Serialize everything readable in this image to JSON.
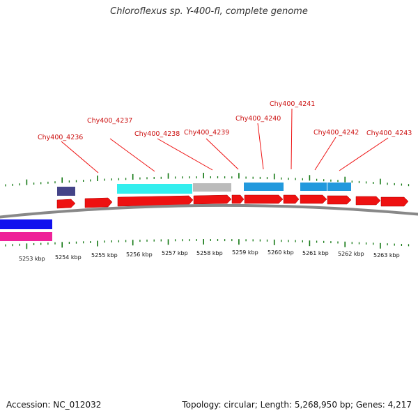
{
  "title": "Chloroflexus sp. Y-400-fl, complete genome",
  "footer": {
    "accession": "Accession: NC_012032",
    "summary": "Topology: circular; Length: 5,268,950 bp; Genes: 4,217"
  },
  "colors": {
    "cds": "#ee1111",
    "cds_dark": "#aa0000",
    "label": "#cc1111",
    "tick": "#117711",
    "track_cyan": "#33eeee",
    "track_gray": "#bbbbbb",
    "track_blue": "#2299dd",
    "track_navy": "#444488",
    "track_blue_strong": "#1111ee",
    "track_magenta": "#ee2299",
    "backbone": "#888888"
  },
  "gene_labels": [
    {
      "text": "Chy400_4236"
    },
    {
      "text": "Chy400_4237"
    },
    {
      "text": "Chy400_4238"
    },
    {
      "text": "Chy400_4239"
    },
    {
      "text": "Chy400_4240"
    },
    {
      "text": "Chy400_4241"
    },
    {
      "text": "Chy400_4242"
    },
    {
      "text": "Chy400_4243"
    }
  ],
  "kbp_labels": [
    {
      "text": "5253 kbp"
    },
    {
      "text": "5254 kbp"
    },
    {
      "text": "5255 kbp"
    },
    {
      "text": "5256 kbp"
    },
    {
      "text": "5257 kbp"
    },
    {
      "text": "5258 kbp"
    },
    {
      "text": "5259 kbp"
    },
    {
      "text": "5260 kbp"
    },
    {
      "text": "5261 kbp"
    },
    {
      "text": "5262 kbp"
    },
    {
      "text": "5263 kbp"
    }
  ]
}
